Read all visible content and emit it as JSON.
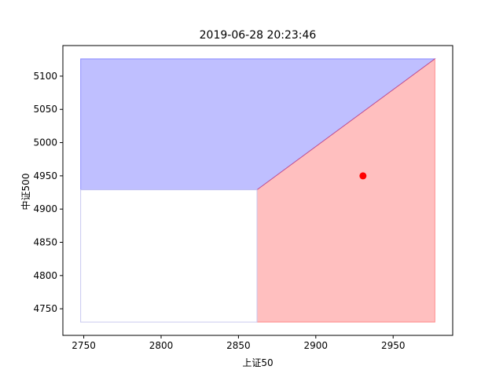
{
  "chart_data": {
    "type": "area",
    "title": "2019-06-28 20:23:46",
    "xlabel": "上证50",
    "ylabel": "中证500",
    "xlim": [
      2736.5,
      2988.5
    ],
    "ylim": [
      4710,
      5146
    ],
    "xticks": [
      2750,
      2800,
      2850,
      2900,
      2950
    ],
    "yticks": [
      4750,
      4800,
      4850,
      4900,
      4950,
      5000,
      5050,
      5100
    ],
    "grid": false,
    "regions": [
      {
        "name": "",
        "color": "#0000ff",
        "opacity": 0.25,
        "points": [
          [
            2748,
            5126
          ],
          [
            2977,
            5126
          ],
          [
            2862,
            4929
          ],
          [
            2748,
            4929
          ]
        ]
      },
      {
        "name": "",
        "color": "#ff0000",
        "opacity": 0.25,
        "points": [
          [
            2862,
            4730
          ],
          [
            2977,
            4730
          ],
          [
            2977,
            5126
          ],
          [
            2862,
            4929
          ]
        ]
      }
    ],
    "white_box": {
      "x": [
        2748,
        2862
      ],
      "y": [
        4730,
        4929
      ]
    },
    "points": [
      {
        "x": 2930.5,
        "y": 4950,
        "color": "#ff0000"
      }
    ]
  }
}
